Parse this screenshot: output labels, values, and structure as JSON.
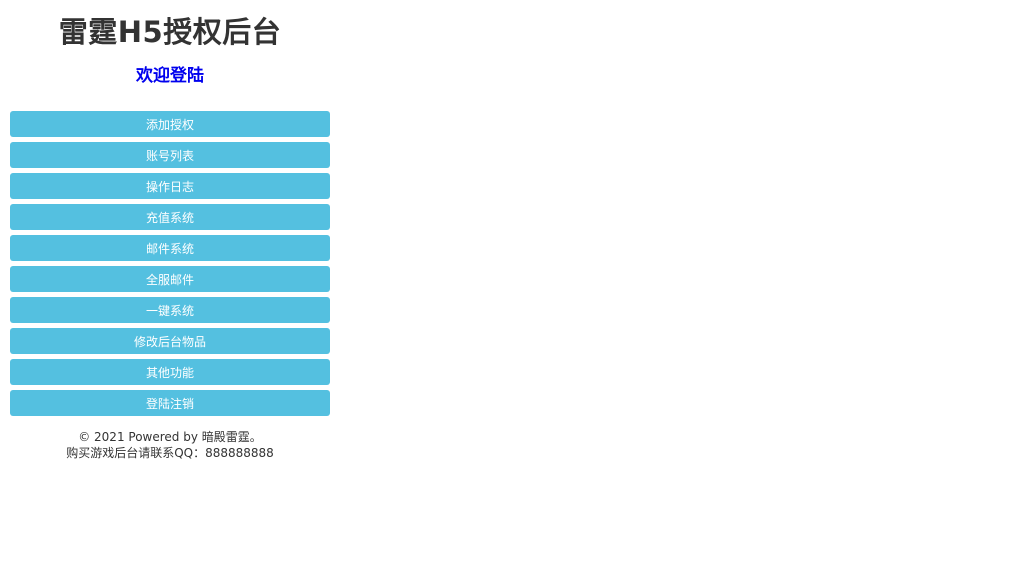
{
  "header": {
    "title": "雷霆H5授权后台",
    "welcome_link": "欢迎登陆"
  },
  "menu": {
    "items": [
      {
        "label": "添加授权"
      },
      {
        "label": "账号列表"
      },
      {
        "label": "操作日志"
      },
      {
        "label": "充值系统"
      },
      {
        "label": "邮件系统"
      },
      {
        "label": "全服邮件"
      },
      {
        "label": "一键系统"
      },
      {
        "label": "修改后台物品"
      },
      {
        "label": "其他功能"
      },
      {
        "label": "登陆注销"
      }
    ]
  },
  "footer": {
    "copyright": "© 2021 Powered by 暗殿雷霆。",
    "contact": "购买游戏后台请联系QQ：888888888"
  },
  "colors": {
    "button_background": "#54c0e0",
    "button_text": "#ffffff",
    "link_blue": "#0000ee",
    "title_text": "#333333",
    "footer_text": "#333333",
    "page_background": "#ffffff"
  }
}
